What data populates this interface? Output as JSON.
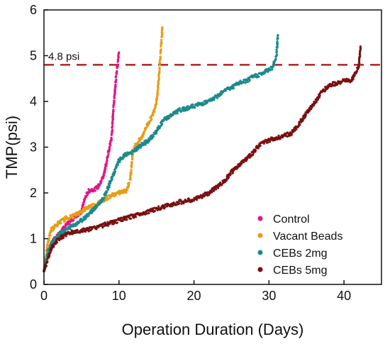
{
  "chart_data": {
    "type": "scatter",
    "xlabel": "Operation Duration (Days)",
    "ylabel": "TMP(psi)",
    "xlim": [
      0,
      45
    ],
    "ylim": [
      0,
      6
    ],
    "x_ticks": [
      0,
      10,
      20,
      30,
      40
    ],
    "y_ticks": [
      0,
      1,
      2,
      3,
      4,
      5,
      6
    ],
    "grid": false,
    "legend_position": "bottom-right",
    "reference_line": {
      "y": 4.8,
      "label": "4.8 psi",
      "color": "#b22222",
      "style": "dashed"
    },
    "series": [
      {
        "name": "Control",
        "color": "#e0168a",
        "points": [
          [
            0,
            0.3
          ],
          [
            0.5,
            0.7
          ],
          [
            1,
            0.9
          ],
          [
            2,
            1.1
          ],
          [
            3,
            1.3
          ],
          [
            4,
            1.45
          ],
          [
            5,
            1.6
          ],
          [
            5.5,
            1.9
          ],
          [
            6,
            2.05
          ],
          [
            7,
            2.1
          ],
          [
            7.5,
            2.2
          ],
          [
            8,
            2.4
          ],
          [
            8.5,
            2.8
          ],
          [
            9,
            3.2
          ],
          [
            9.2,
            3.7
          ],
          [
            9.4,
            4.1
          ],
          [
            9.6,
            4.5
          ],
          [
            9.8,
            4.8
          ],
          [
            10,
            5.05
          ]
        ]
      },
      {
        "name": "Vacant Beads",
        "color": "#e89c17",
        "points": [
          [
            0,
            0.3
          ],
          [
            0.5,
            0.9
          ],
          [
            1,
            1.2
          ],
          [
            2,
            1.35
          ],
          [
            3,
            1.45
          ],
          [
            4,
            1.5
          ],
          [
            5,
            1.6
          ],
          [
            6,
            1.7
          ],
          [
            7,
            1.75
          ],
          [
            8,
            1.85
          ],
          [
            9,
            1.95
          ],
          [
            10,
            2.0
          ],
          [
            11,
            2.05
          ],
          [
            11.5,
            2.3
          ],
          [
            11.8,
            2.8
          ],
          [
            12,
            3.0
          ],
          [
            13,
            3.2
          ],
          [
            13.5,
            3.4
          ],
          [
            14,
            3.55
          ],
          [
            14.5,
            3.7
          ],
          [
            15,
            4.0
          ],
          [
            15.2,
            4.3
          ],
          [
            15.4,
            4.7
          ],
          [
            15.6,
            5.2
          ],
          [
            15.8,
            5.6
          ]
        ]
      },
      {
        "name": "CEBs 2mg",
        "color": "#1c8a8a",
        "points": [
          [
            0,
            0.3
          ],
          [
            0.5,
            0.7
          ],
          [
            1,
            0.9
          ],
          [
            2,
            1.1
          ],
          [
            3,
            1.2
          ],
          [
            4,
            1.3
          ],
          [
            5,
            1.4
          ],
          [
            6,
            1.55
          ],
          [
            7,
            1.7
          ],
          [
            8,
            1.9
          ],
          [
            9,
            2.3
          ],
          [
            10,
            2.7
          ],
          [
            11,
            2.85
          ],
          [
            12,
            2.9
          ],
          [
            13,
            3.05
          ],
          [
            14,
            3.15
          ],
          [
            15,
            3.35
          ],
          [
            16,
            3.6
          ],
          [
            17,
            3.7
          ],
          [
            18,
            3.8
          ],
          [
            20,
            3.9
          ],
          [
            22,
            4.0
          ],
          [
            23,
            4.1
          ],
          [
            24,
            4.25
          ],
          [
            25,
            4.3
          ],
          [
            26,
            4.4
          ],
          [
            27,
            4.45
          ],
          [
            28,
            4.55
          ],
          [
            29,
            4.6
          ],
          [
            30,
            4.7
          ],
          [
            30.5,
            4.75
          ],
          [
            31,
            5.0
          ],
          [
            31.2,
            5.45
          ]
        ]
      },
      {
        "name": "CEBs 5mg",
        "color": "#7a1010",
        "points": [
          [
            0,
            0.3
          ],
          [
            1,
            0.8
          ],
          [
            2,
            1.0
          ],
          [
            3,
            1.1
          ],
          [
            4,
            1.15
          ],
          [
            6,
            1.2
          ],
          [
            8,
            1.3
          ],
          [
            10,
            1.4
          ],
          [
            12,
            1.5
          ],
          [
            14,
            1.6
          ],
          [
            16,
            1.7
          ],
          [
            18,
            1.8
          ],
          [
            20,
            1.85
          ],
          [
            22,
            2.0
          ],
          [
            24,
            2.25
          ],
          [
            25,
            2.45
          ],
          [
            26,
            2.6
          ],
          [
            27,
            2.75
          ],
          [
            28,
            2.9
          ],
          [
            29,
            3.1
          ],
          [
            30,
            3.15
          ],
          [
            31,
            3.2
          ],
          [
            32,
            3.25
          ],
          [
            33,
            3.3
          ],
          [
            34,
            3.5
          ],
          [
            35,
            3.75
          ],
          [
            36,
            3.95
          ],
          [
            37,
            4.2
          ],
          [
            38,
            4.35
          ],
          [
            39,
            4.4
          ],
          [
            40,
            4.45
          ],
          [
            41,
            4.45
          ],
          [
            41.5,
            4.6
          ],
          [
            42,
            4.8
          ],
          [
            42.2,
            5.2
          ]
        ]
      }
    ]
  }
}
